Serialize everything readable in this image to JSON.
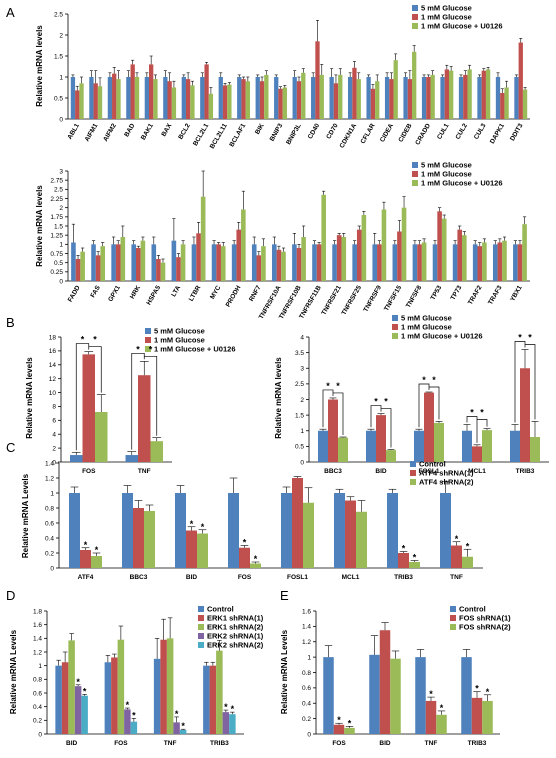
{
  "colors": {
    "blue": "#4f81bd",
    "red": "#c0504d",
    "green": "#9bbb59",
    "purple": "#8064a2",
    "teal": "#4bacc6"
  },
  "chart_data": [
    {
      "id": "A1",
      "panel": "A",
      "type": "bar",
      "ylabel": "Relative mRNA levels",
      "ylim": [
        0,
        2.5
      ],
      "yticks": [
        0,
        0.5,
        1,
        1.5,
        2,
        2.5
      ],
      "categories": [
        "ABL1",
        "AIFM1",
        "AIFM2",
        "BAD",
        "BAK1",
        "BAX",
        "BCL2",
        "BCL2L1",
        "BCL2L11",
        "BCLAF1",
        "BIK",
        "BNIP3",
        "BNIP3L",
        "CD40",
        "CD70",
        "CDKN1A",
        "CFLAR",
        "CIDEA",
        "CIDEB",
        "CRADD",
        "CUL1",
        "CUL2",
        "CUL3",
        "DAPK1",
        "DDIT3"
      ],
      "series": [
        {
          "name": "5 mM Glucose",
          "color": "#4f81bd",
          "values": [
            1,
            1,
            1,
            1,
            1,
            1,
            1,
            1,
            1,
            1,
            1,
            1,
            1,
            1,
            1,
            1,
            1,
            1,
            1,
            1,
            1,
            1,
            1,
            1,
            1
          ],
          "errors": [
            0.05,
            0.15,
            0.1,
            0.15,
            0.1,
            0.15,
            0.05,
            0.1,
            0.1,
            0.05,
            0.05,
            0.05,
            0.15,
            0.1,
            0.2,
            0.1,
            0.05,
            0.1,
            0.1,
            0.05,
            0.05,
            0.05,
            0.05,
            0.1,
            0.05
          ]
        },
        {
          "name": "1 mM Glucose",
          "color": "#c0504d",
          "values": [
            0.68,
            0.85,
            1.08,
            1.3,
            1.3,
            0.9,
            0.95,
            1.3,
            0.8,
            0.95,
            0.9,
            0.72,
            0.9,
            1.85,
            0.85,
            1.22,
            0.72,
            0.95,
            0.95,
            1.0,
            1.18,
            1.05,
            1.15,
            0.62,
            1.82
          ],
          "errors": [
            0.1,
            0.3,
            0.15,
            0.1,
            0.2,
            0.2,
            0.15,
            0.05,
            0.05,
            0.05,
            0.1,
            0.05,
            0.1,
            0.5,
            0.2,
            0.15,
            0.1,
            0.15,
            0.2,
            0.05,
            0.1,
            0.1,
            0.05,
            0.1,
            0.1
          ]
        },
        {
          "name": "1 mM Glucose + U0126",
          "color": "#9bbb59",
          "values": [
            0.85,
            0.78,
            0.95,
            1.0,
            0.95,
            0.75,
            0.8,
            0.6,
            0.82,
            0.9,
            1.05,
            0.75,
            1.1,
            1.05,
            1.05,
            0.95,
            0.9,
            1.4,
            1.6,
            1.05,
            1.15,
            1.18,
            1.18,
            0.75,
            0.7
          ],
          "errors": [
            0.15,
            0.2,
            0.2,
            0.1,
            0.1,
            0.15,
            0.1,
            0.15,
            0.05,
            0.1,
            0.1,
            0.05,
            0.1,
            0.25,
            0.15,
            0.15,
            0.15,
            0.15,
            0.15,
            0.1,
            0.1,
            0.1,
            0.05,
            0.15,
            0.05
          ]
        }
      ]
    },
    {
      "id": "A2",
      "panel": "A",
      "type": "bar",
      "ylabel": "Relative mRNA levels",
      "ylim": [
        0,
        3
      ],
      "yticks": [
        0,
        0.25,
        0.5,
        0.75,
        1,
        1.25,
        1.5,
        1.75,
        2,
        2.25,
        2.5,
        2.75,
        3
      ],
      "categories": [
        "FADD",
        "FAS",
        "GPX1",
        "HRK",
        "HSPA5",
        "LTA",
        "LTBR",
        "MYC",
        "PRODH",
        "RNF7",
        "TNFRSF10A",
        "TNFRSF10B",
        "TNFRSF11B",
        "TNFRSF21",
        "TNFRSF25",
        "TNFRSF9",
        "TNFSF15",
        "TNFSF8",
        "TP53",
        "TP73",
        "TRAF2",
        "TRAF3",
        "YBX1"
      ],
      "series": [
        {
          "name": "5 mM Glucose",
          "color": "#4f81bd",
          "values": [
            1.05,
            1,
            1,
            1,
            1,
            1.1,
            1,
            1,
            1,
            1,
            1,
            1,
            1,
            1,
            1,
            1,
            1,
            1,
            1,
            1,
            1,
            1,
            1
          ],
          "errors": [
            0.5,
            0.1,
            0.2,
            0.1,
            0.2,
            0.6,
            0.2,
            0.1,
            0.1,
            0.2,
            0.2,
            0.3,
            0.1,
            0.1,
            0.1,
            0.3,
            0.1,
            0.1,
            0.1,
            0.1,
            0.1,
            0.1,
            0.1
          ]
        },
        {
          "name": "1 mM Glucose",
          "color": "#c0504d",
          "values": [
            0.6,
            0.7,
            1.0,
            0.9,
            0.6,
            0.65,
            1.3,
            1.0,
            1.4,
            0.7,
            0.85,
            0.9,
            1.0,
            1.25,
            1.4,
            1.0,
            1.35,
            1.0,
            1.9,
            1.4,
            0.95,
            1.05,
            1.0
          ],
          "errors": [
            0.1,
            0.1,
            0.1,
            0.05,
            0.1,
            0.1,
            0.3,
            0.05,
            0.2,
            0.1,
            0.1,
            0.1,
            0.05,
            0.05,
            0.1,
            0.1,
            0.3,
            0.1,
            0.1,
            0.1,
            0.1,
            0.1,
            0.1
          ]
        },
        {
          "name": "1 mM Glucose + U0126",
          "color": "#9bbb59",
          "values": [
            0.8,
            0.95,
            1.2,
            1.1,
            0.5,
            1.0,
            2.3,
            0.95,
            1.95,
            0.95,
            0.8,
            1.2,
            2.35,
            1.2,
            1.8,
            1.95,
            2.0,
            1.05,
            1.7,
            1.25,
            1.05,
            1.1,
            1.55
          ],
          "errors": [
            0.1,
            0.1,
            0.3,
            0.1,
            0.1,
            0.1,
            0.7,
            0.1,
            0.5,
            0.2,
            0.1,
            0.3,
            0.1,
            0.1,
            0.1,
            0.2,
            0.3,
            0.1,
            0.1,
            0.1,
            0.1,
            0.1,
            0.2
          ]
        }
      ]
    },
    {
      "id": "B1",
      "panel": "B",
      "type": "bar",
      "ylabel": "Relative mRNA levels",
      "ylim": [
        0,
        18
      ],
      "yticks": [
        0,
        2,
        4,
        6,
        8,
        10,
        12,
        14,
        16,
        18
      ],
      "categories": [
        "FOS",
        "TNF"
      ],
      "series": [
        {
          "name": "5 mM Glucose",
          "color": "#4f81bd",
          "values": [
            1,
            1
          ],
          "errors": [
            0.4,
            0.5
          ]
        },
        {
          "name": "1 mM Glucose",
          "color": "#c0504d",
          "values": [
            15.5,
            12.5
          ],
          "errors": [
            0.4,
            2.0
          ]
        },
        {
          "name": "1 mM Glucose + U0126",
          "color": "#9bbb59",
          "values": [
            7.2,
            3.0
          ],
          "errors": [
            2.5,
            0.5
          ]
        }
      ],
      "significance": [
        "*",
        "*",
        "*",
        "*"
      ]
    },
    {
      "id": "B2",
      "panel": "B",
      "type": "bar",
      "ylabel": "Relative mRNA levels",
      "ylim": [
        0,
        4
      ],
      "yticks": [
        0,
        0.5,
        1,
        1.5,
        2,
        2.5,
        3,
        3.5,
        4
      ],
      "categories": [
        "BBC3",
        "BID",
        "FOSL1",
        "MCL1",
        "TRIB3"
      ],
      "series": [
        {
          "name": "5 mM Glucose",
          "color": "#4f81bd",
          "values": [
            1,
            1,
            1,
            1,
            1
          ],
          "errors": [
            0.05,
            0.05,
            0.05,
            0.2,
            0.2
          ]
        },
        {
          "name": "1 mM Glucose",
          "color": "#c0504d",
          "values": [
            2.0,
            1.5,
            2.22,
            0.5,
            3.0
          ],
          "errors": [
            0.05,
            0.05,
            0.02,
            0.05,
            0.6
          ]
        },
        {
          "name": "1 mM Glucose + U0126",
          "color": "#9bbb59",
          "values": [
            0.78,
            0.38,
            1.25,
            1.02,
            0.8
          ],
          "errors": [
            0.02,
            0.02,
            0.05,
            0.05,
            0.5
          ]
        }
      ],
      "significance": [
        "*",
        "*",
        "*",
        "*",
        "*",
        "*",
        "*",
        "*",
        "*",
        "*"
      ]
    },
    {
      "id": "C",
      "panel": "C",
      "type": "bar",
      "ylabel": "Relative mRNA Levels",
      "ylim": [
        0,
        1.4
      ],
      "yticks": [
        0,
        0.2,
        0.4,
        0.6,
        0.8,
        1,
        1.2,
        1.4
      ],
      "categories": [
        "ATF4",
        "BBC3",
        "BID",
        "FOS",
        "FOSL1",
        "MCL1",
        "TRIB3",
        "TNF"
      ],
      "series": [
        {
          "name": "Control",
          "color": "#4f81bd",
          "values": [
            1,
            1,
            1,
            1,
            1,
            1,
            1,
            1
          ],
          "errors": [
            0.08,
            0.1,
            0.1,
            0.2,
            0.08,
            0.05,
            0.05,
            0.15
          ]
        },
        {
          "name": "ATF4 shRNA(1)",
          "color": "#c0504d",
          "values": [
            0.24,
            0.8,
            0.5,
            0.27,
            1.2,
            0.9,
            0.2,
            0.3
          ],
          "errors": [
            0.03,
            0.1,
            0.05,
            0.03,
            0.02,
            0.05,
            0.02,
            0.05
          ]
        },
        {
          "name": "ATF4 shRNA(2)",
          "color": "#9bbb59",
          "values": [
            0.16,
            0.76,
            0.46,
            0.06,
            0.87,
            0.75,
            0.08,
            0.15
          ],
          "errors": [
            0.04,
            0.08,
            0.05,
            0.02,
            0.2,
            0.15,
            0.02,
            0.1
          ]
        }
      ],
      "significance": [
        "*",
        "*",
        "*",
        "*",
        "*",
        "*",
        "*",
        "*",
        "*",
        "*"
      ]
    },
    {
      "id": "D",
      "panel": "D",
      "type": "bar",
      "ylabel": "Relative mRNA Levels",
      "ylim": [
        0,
        1.8
      ],
      "yticks": [
        0,
        0.2,
        0.4,
        0.6,
        0.8,
        1,
        1.2,
        1.4,
        1.6,
        1.8
      ],
      "categories": [
        "BID",
        "FOS",
        "TNF",
        "TRIB3"
      ],
      "series": [
        {
          "name": "Control",
          "color": "#4f81bd",
          "values": [
            1,
            1.05,
            1.1,
            1.0
          ],
          "errors": [
            0.08,
            0.1,
            0.3,
            0.05
          ]
        },
        {
          "name": "ERK1 shRNA(1)",
          "color": "#c0504d",
          "values": [
            1.05,
            1.12,
            1.38,
            1.0
          ],
          "errors": [
            0.15,
            0.05,
            0.3,
            0.05
          ]
        },
        {
          "name": "ERK1 shRNA(2)",
          "color": "#9bbb59",
          "values": [
            1.37,
            1.38,
            1.4,
            1.22
          ],
          "errors": [
            0.1,
            0.2,
            0.3,
            0.15
          ]
        },
        {
          "name": "ERK2 shRNA(1)",
          "color": "#8064a2",
          "values": [
            0.7,
            0.36,
            0.17,
            0.32
          ],
          "errors": [
            0.02,
            0.02,
            0.08,
            0.03
          ]
        },
        {
          "name": "ERK2 shRNA(2)",
          "color": "#4bacc6",
          "values": [
            0.56,
            0.18,
            0.06,
            0.29
          ],
          "errors": [
            0.02,
            0.05,
            0.01,
            0.03
          ]
        }
      ],
      "significance": [
        "*",
        "*",
        "*",
        "*",
        "*",
        "*",
        "*",
        "*"
      ]
    },
    {
      "id": "E",
      "panel": "E",
      "type": "bar",
      "ylabel": "Relative mRNA Levels",
      "ylim": [
        0,
        1.6
      ],
      "yticks": [
        0,
        0.2,
        0.4,
        0.6,
        0.8,
        1,
        1.2,
        1.4,
        1.6
      ],
      "categories": [
        "FOS",
        "BID",
        "TNF",
        "TRIB3"
      ],
      "series": [
        {
          "name": "Control",
          "color": "#4f81bd",
          "values": [
            1,
            1.03,
            1,
            1
          ],
          "errors": [
            0.15,
            0.25,
            0.1,
            0.1
          ]
        },
        {
          "name": "FOS shRNA(1)",
          "color": "#c0504d",
          "values": [
            0.12,
            1.35,
            0.43,
            0.47
          ],
          "errors": [
            0.02,
            0.1,
            0.05,
            0.08
          ]
        },
        {
          "name": "FOS shRNA(2)",
          "color": "#9bbb59",
          "values": [
            0.08,
            0.98,
            0.25,
            0.43
          ],
          "errors": [
            0.02,
            0.1,
            0.05,
            0.08
          ]
        }
      ],
      "significance": [
        "*",
        "*",
        "*",
        "*",
        "*",
        "*"
      ]
    }
  ],
  "panel_labels": {
    "A": "A",
    "B": "B",
    "C": "C",
    "D": "D",
    "E": "E"
  }
}
